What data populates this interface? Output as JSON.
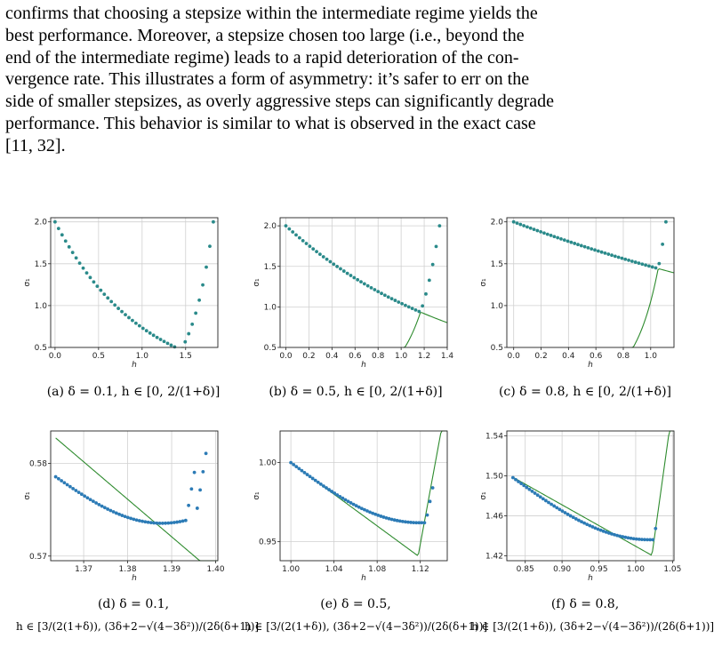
{
  "paragraph_lines": [
    "confirms that choosing a stepsize within the intermediate regime yields the",
    "best performance. Moreover, a stepsize chosen too large (i.e., beyond the",
    "end of the intermediate regime) leads to a rapid deterioration of the con-",
    "vergence rate. This illustrates a form of asymmetry: it’s safer to err on the",
    "side of smaller stepsizes, as overly aggressive steps can significantly degrade",
    "performance. This behavior is similar to what is observed in the exact case",
    "[11, 32]."
  ],
  "captions": {
    "a": "(a) δ = 0.1, h ∈ [0, 2/(1+δ)]",
    "b": "(b) δ = 0.5, h ∈ [0, 2/(1+δ)]",
    "c": "(c) δ = 0.8, h ∈ [0, 2/(1+δ)]",
    "d_line1": "(d) δ = 0.1,",
    "e_line1": "(e) δ = 0.5,",
    "f_line1": "(f) δ = 0.8,",
    "interval2": "h ∈ [3/(2(1+δ)), (3δ+2−√(4−3δ²))/(2δ(δ+1))]"
  },
  "colors": {
    "dots": "#2c7bb6",
    "dots_teal": "#2a8a8a",
    "line": "#2e8b2e",
    "grid": "#d0d0d0"
  },
  "chart_data": [
    {
      "type": "line",
      "id": "a",
      "delta": 0.1,
      "xlabel": "h",
      "ylabel": "σ₁",
      "xlim": [
        -0.05,
        1.87
      ],
      "ylim": [
        0.5,
        2.05
      ],
      "xticks": [
        "0.0",
        "0.5",
        "1.0",
        "1.5"
      ],
      "xtick_values": [
        0,
        0.5,
        1.0,
        1.5
      ],
      "yticks": [
        "0.5",
        "1.0",
        "1.5",
        "2.0"
      ],
      "ytick_values": [
        0.5,
        1.0,
        1.5,
        2.0
      ],
      "grid": true
    },
    {
      "type": "line",
      "id": "b",
      "delta": 0.5,
      "xlabel": "h",
      "ylabel": "σ₁",
      "xlim": [
        -0.05,
        1.4
      ],
      "ylim": [
        0.5,
        2.1
      ],
      "xticks": [
        "0.0",
        "0.2",
        "0.4",
        "0.6",
        "0.8",
        "1.0",
        "1.2",
        "1.4"
      ],
      "xtick_values": [
        0,
        0.2,
        0.4,
        0.6,
        0.8,
        1.0,
        1.2,
        1.4
      ],
      "yticks": [
        "0.5",
        "1.0",
        "1.5",
        "2.0"
      ],
      "ytick_values": [
        0.5,
        1.0,
        1.5,
        2.0
      ],
      "grid": true
    },
    {
      "type": "line",
      "id": "c",
      "delta": 0.8,
      "xlabel": "h",
      "ylabel": "σ₁",
      "xlim": [
        -0.05,
        1.17
      ],
      "ylim": [
        0.5,
        2.05
      ],
      "xticks": [
        "0.0",
        "0.2",
        "0.4",
        "0.6",
        "0.8",
        "1.0"
      ],
      "xtick_values": [
        0,
        0.2,
        0.4,
        0.6,
        0.8,
        1.0
      ],
      "yticks": [
        "0.5",
        "1.0",
        "1.5",
        "2.0"
      ],
      "ytick_values": [
        0.5,
        1.0,
        1.5,
        2.0
      ],
      "grid": true
    },
    {
      "type": "line",
      "id": "d",
      "delta": 0.1,
      "xlabel": "h",
      "ylabel": "σ₁",
      "xlim": [
        1.3625,
        1.4005
      ],
      "ylim": [
        0.5695,
        0.5835
      ],
      "xticks": [
        "1.37",
        "1.38",
        "1.39",
        "1.40"
      ],
      "xtick_values": [
        1.37,
        1.38,
        1.39,
        1.4
      ],
      "yticks": [
        "0.57",
        "0.58"
      ],
      "ytick_values": [
        0.57,
        0.58
      ],
      "grid": true
    },
    {
      "type": "line",
      "id": "e",
      "delta": 0.5,
      "xlabel": "h",
      "ylabel": "σ₁",
      "xlim": [
        0.99,
        1.145
      ],
      "ylim": [
        0.938,
        1.02
      ],
      "xticks": [
        "1.00",
        "1.04",
        "1.08",
        "1.12"
      ],
      "xtick_values": [
        1.0,
        1.04,
        1.08,
        1.12
      ],
      "yticks": [
        "0.95",
        "1.00"
      ],
      "ytick_values": [
        0.95,
        1.0
      ],
      "grid": true
    },
    {
      "type": "line",
      "id": "f",
      "delta": 0.8,
      "xlabel": "h",
      "ylabel": "σ₁",
      "xlim": [
        0.825,
        1.052
      ],
      "ylim": [
        1.415,
        1.545
      ],
      "xticks": [
        "0.85",
        "0.90",
        "0.95",
        "1.00",
        "1.05"
      ],
      "xtick_values": [
        0.85,
        0.9,
        0.95,
        1.0,
        1.05
      ],
      "yticks": [
        "1.42",
        "1.46",
        "1.50",
        "1.54"
      ],
      "ytick_values": [
        1.42,
        1.46,
        1.5,
        1.54
      ],
      "grid": true
    }
  ]
}
